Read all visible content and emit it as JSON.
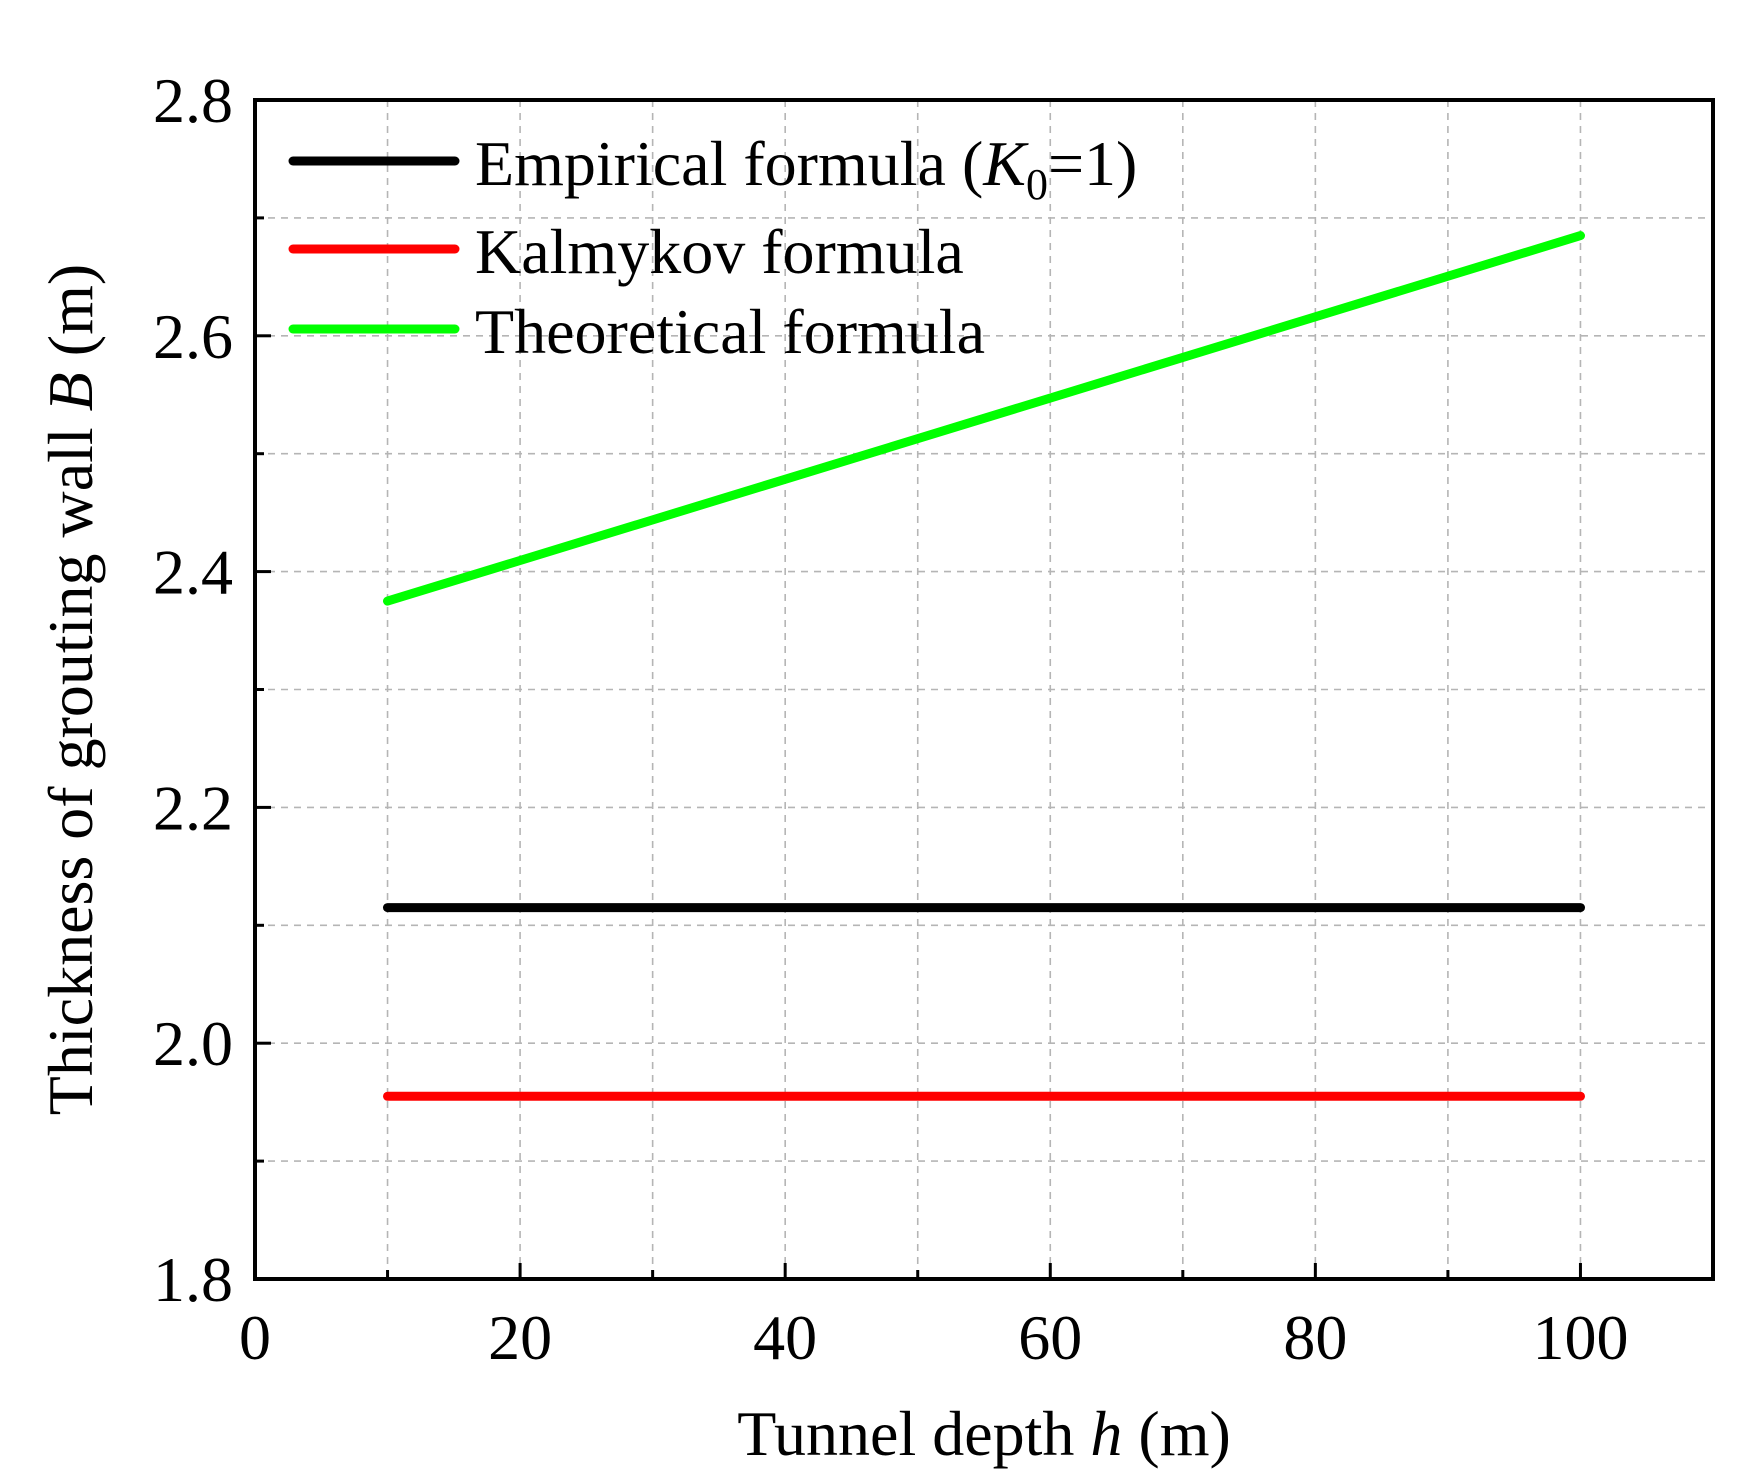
{
  "chart_data": {
    "type": "line",
    "x": [
      10,
      100
    ],
    "series": [
      {
        "name": "Empirical formula",
        "legend_label": "Empirical formula (K0=1)",
        "color": "#000000",
        "values": [
          2.115,
          2.115
        ]
      },
      {
        "name": "Kalmykov formula",
        "legend_label": "Kalmykov formula",
        "color": "#ff0000",
        "values": [
          1.955,
          1.955
        ]
      },
      {
        "name": "Theoretical formula",
        "legend_label": "Theoretical formula",
        "color": "#00ff00",
        "values": [
          2.375,
          2.685
        ]
      }
    ],
    "legend": {
      "entry_1": {
        "prefix": "Empirical formula (",
        "symbol": "K",
        "subscript": "0",
        "suffix": "=1)"
      },
      "entry_2": "Kalmykov formula",
      "entry_3": "Theoretical formula",
      "placement": "top-left"
    },
    "xlabel": {
      "text": "Tunnel depth ",
      "var": "h",
      "unit": " (m)"
    },
    "ylabel": {
      "text": "Thickness of grouting wall ",
      "var": "B",
      "unit": " (m)"
    },
    "xlim": [
      0,
      110
    ],
    "ylim": [
      1.8,
      2.8
    ],
    "x_ticks": [
      0,
      20,
      40,
      60,
      80,
      100
    ],
    "x_minor_ticks": [
      10,
      30,
      50,
      70,
      90,
      110
    ],
    "y_ticks": [
      "1.8",
      "2.0",
      "2.2",
      "2.4",
      "2.6",
      "2.8"
    ],
    "y_minor_ticks": [
      1.9,
      2.1,
      2.3,
      2.5,
      2.7
    ],
    "grid": true
  }
}
